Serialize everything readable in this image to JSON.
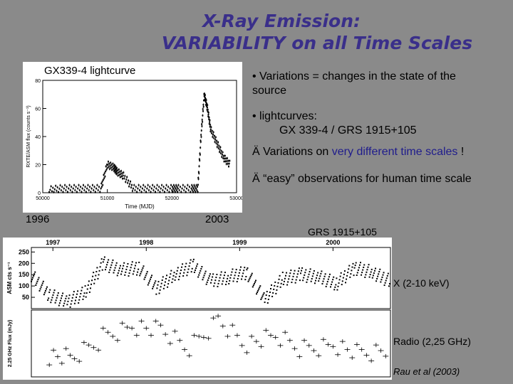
{
  "slide": {
    "title_line1": "X-Ray Emission:",
    "title_line2": "VARIABILITY on all Time Scales"
  },
  "top_figure": {
    "label": "GX339-4 lightcurve",
    "year_start": "1996",
    "year_end": "2003",
    "xlabel": "Time (MJD)",
    "ylabel": "RXTE/ASM flux (counts s⁻¹)",
    "x_ticks": [
      "50000",
      "51000",
      "52000",
      "53000"
    ],
    "y_ticks": [
      "0",
      "20",
      "40",
      "60",
      "80"
    ]
  },
  "bullets": {
    "b1_line1": "• Variations = changes in the state of the",
    "b1_line2": "source",
    "b2_line1": "• lightcurves:",
    "b2_line2": "GX 339-4 / GRS 1915+105",
    "b3_arrow": "Ä",
    "b3_pre": " Variations on ",
    "b3_hl": "very different time scales",
    "b3_post": " !",
    "b4_arrow": "Ä",
    "b4_text": " “easy” observations for human time scale"
  },
  "bottom_figure": {
    "label": "GRS 1915+105",
    "years": [
      "1997",
      "1998",
      "1999",
      "2000"
    ],
    "xray_ylabel": "ASM cts s⁻¹",
    "xray_ticks": [
      "250",
      "200",
      "150",
      "100",
      "50"
    ],
    "radio_ylabel": "2.25 GHz Flux (mJy)",
    "xray_label": "X (2-10 keV)",
    "radio_label": "Radio (2,25 GHz)",
    "credit": "Rau et al (2003)"
  },
  "chart_data": [
    {
      "type": "scatter",
      "title": "",
      "xlabel": "Time (MJD)",
      "ylabel": "RXTE/ASM flux (counts s⁻¹)",
      "xlim": [
        50000,
        53000
      ],
      "ylim": [
        0,
        80
      ],
      "series": [
        {
          "x": [
            50100,
            50300,
            50500,
            50700,
            50900,
            51000,
            51100,
            51150,
            51250,
            51400,
            51600,
            51800,
            52000,
            52100,
            52300,
            52400,
            52450,
            52500,
            52550,
            52600,
            52700,
            52800,
            52900
          ],
          "y": [
            2,
            3,
            3,
            3,
            3,
            20,
            18,
            15,
            12,
            3,
            3,
            3,
            3,
            3,
            3,
            3,
            40,
            70,
            60,
            45,
            35,
            25,
            20
          ]
        }
      ]
    },
    {
      "type": "scatter",
      "title": "",
      "xlabel": "",
      "ylabel": "ASM cts s⁻¹",
      "x_categories": [
        "1997",
        "1998",
        "1999",
        "2000"
      ],
      "ylim": [
        0,
        270
      ],
      "series": [
        {
          "name": "X (2-10 keV)",
          "x": [
            0.0,
            0.05,
            0.1,
            0.15,
            0.2,
            0.25,
            0.3,
            0.35,
            0.4,
            0.45,
            0.5,
            0.55,
            0.6,
            0.65,
            0.7,
            0.75,
            0.8,
            0.85,
            0.9,
            0.95,
            1.0
          ],
          "y": [
            150,
            60,
            30,
            70,
            200,
            170,
            180,
            90,
            150,
            190,
            120,
            140,
            160,
            40,
            130,
            150,
            140,
            110,
            180,
            160,
            120
          ]
        },
        {
          "name": "Radio (2,25 GHz)",
          "x": [
            0.05,
            0.12,
            0.2,
            0.28,
            0.36,
            0.44,
            0.52,
            0.6,
            0.68,
            0.76,
            0.84,
            0.92,
            1.0
          ],
          "y": [
            30,
            25,
            60,
            80,
            70,
            40,
            90,
            50,
            60,
            40,
            50,
            30,
            35
          ]
        }
      ]
    }
  ]
}
